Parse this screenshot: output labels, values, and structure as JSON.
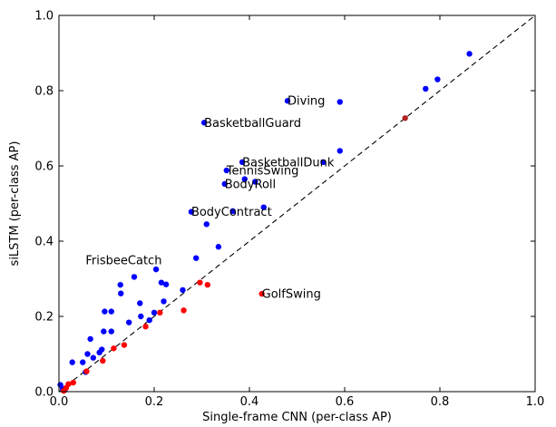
{
  "chart_data": {
    "type": "scatter",
    "title": "",
    "xlabel": "Single-frame CNN (per-class AP)",
    "ylabel": "siLSTM (per-class AP)",
    "xlim": [
      0,
      1
    ],
    "ylim": [
      0,
      1
    ],
    "xticks": [
      "0.0",
      "0.2",
      "0.4",
      "0.6",
      "0.8",
      "1.0"
    ],
    "yticks": [
      "0.0",
      "0.2",
      "0.4",
      "0.6",
      "0.8",
      "1.0"
    ],
    "grid": false,
    "diagonal": {
      "from": [
        0,
        0
      ],
      "to": [
        1,
        1
      ],
      "style": "dashed",
      "color": "#000000"
    },
    "colors": {
      "above": "#0000ff",
      "below": "#ff0000",
      "near": "#b22222"
    },
    "series": [
      {
        "color_key": "above",
        "points": [
          [
            0.003,
            0.018
          ],
          [
            0.008,
            0.008
          ],
          [
            0.012,
            0.004
          ],
          [
            0.028,
            0.078
          ],
          [
            0.05,
            0.078
          ],
          [
            0.056,
            0.052
          ],
          [
            0.06,
            0.1
          ],
          [
            0.066,
            0.14
          ],
          [
            0.072,
            0.09
          ],
          [
            0.085,
            0.104
          ],
          [
            0.09,
            0.112
          ],
          [
            0.094,
            0.16
          ],
          [
            0.096,
            0.213
          ],
          [
            0.11,
            0.16
          ],
          [
            0.11,
            0.213
          ],
          [
            0.129,
            0.284
          ],
          [
            0.13,
            0.261
          ],
          [
            0.147,
            0.184
          ],
          [
            0.158,
            0.305
          ],
          [
            0.17,
            0.235
          ],
          [
            0.172,
            0.2
          ],
          [
            0.19,
            0.19
          ],
          [
            0.2,
            0.21
          ],
          [
            0.204,
            0.325
          ],
          [
            0.215,
            0.29
          ],
          [
            0.22,
            0.24
          ],
          [
            0.225,
            0.285
          ],
          [
            0.26,
            0.27
          ],
          [
            0.278,
            0.478
          ],
          [
            0.288,
            0.355
          ],
          [
            0.305,
            0.715
          ],
          [
            0.31,
            0.445
          ],
          [
            0.335,
            0.385
          ],
          [
            0.348,
            0.552
          ],
          [
            0.352,
            0.588
          ],
          [
            0.365,
            0.48
          ],
          [
            0.385,
            0.61
          ],
          [
            0.39,
            0.565
          ],
          [
            0.412,
            0.558
          ],
          [
            0.43,
            0.49
          ],
          [
            0.48,
            0.773
          ],
          [
            0.555,
            0.61
          ],
          [
            0.59,
            0.64
          ],
          [
            0.59,
            0.77
          ],
          [
            0.77,
            0.805
          ],
          [
            0.795,
            0.83
          ],
          [
            0.862,
            0.898
          ]
        ]
      },
      {
        "color_key": "below",
        "points": [
          [
            0.01,
            0.002
          ],
          [
            0.015,
            0.01
          ],
          [
            0.02,
            0.02
          ],
          [
            0.03,
            0.024
          ],
          [
            0.058,
            0.054
          ],
          [
            0.092,
            0.082
          ],
          [
            0.115,
            0.115
          ],
          [
            0.137,
            0.124
          ],
          [
            0.182,
            0.173
          ],
          [
            0.212,
            0.21
          ],
          [
            0.262,
            0.216
          ],
          [
            0.296,
            0.29
          ],
          [
            0.312,
            0.284
          ],
          [
            0.426,
            0.26
          ]
        ]
      },
      {
        "color_key": "near",
        "points": [
          [
            0.727,
            0.727
          ]
        ]
      }
    ],
    "annotations": [
      {
        "text": "Diving",
        "x": 0.48,
        "y": 0.773
      },
      {
        "text": "BasketballGuard",
        "x": 0.305,
        "y": 0.715
      },
      {
        "text": "BasketballDunk",
        "x": 0.385,
        "y": 0.61
      },
      {
        "text": "TennisSwing",
        "x": 0.352,
        "y": 0.588
      },
      {
        "text": "BodyRoll",
        "x": 0.348,
        "y": 0.552
      },
      {
        "text": "BodyContract",
        "x": 0.278,
        "y": 0.478
      },
      {
        "text": "FrisbeeCatch",
        "x": 0.056,
        "y": 0.349
      },
      {
        "text": "GolfSwing",
        "x": 0.426,
        "y": 0.26
      }
    ]
  }
}
